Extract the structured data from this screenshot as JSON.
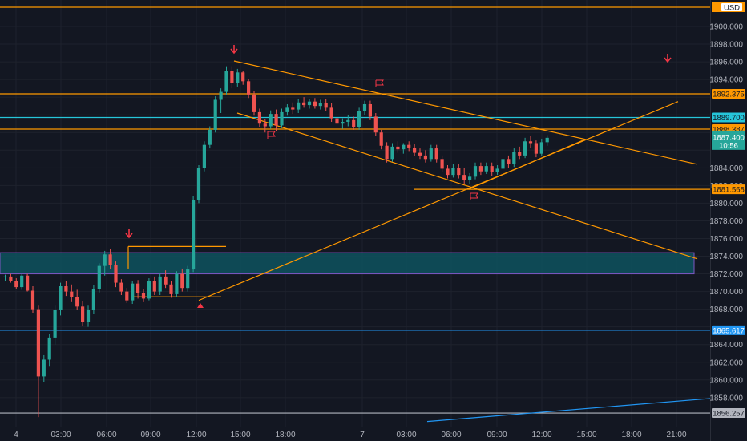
{
  "chart_data": {
    "type": "candlestick",
    "currency": "USD",
    "y_ticks": [
      "1900.000",
      "1898.000",
      "1896.000",
      "1894.000",
      "1884.000",
      "1882.000",
      "1880.000",
      "1878.000",
      "1876.000",
      "1874.000",
      "1872.000",
      "1870.000",
      "1868.000",
      "1864.000",
      "1862.000",
      "1860.000",
      "1858.000"
    ],
    "x_ticks": [
      "4",
      "03:00",
      "06:00",
      "09:00",
      "12:00",
      "15:00",
      "18:00",
      "7",
      "03:00",
      "06:00",
      "09:00",
      "12:00",
      "15:00",
      "18:00",
      "21:00"
    ],
    "horizontal_levels": [
      {
        "value": "1892.375",
        "color": "#ff9800"
      },
      {
        "value": "1889.700",
        "color": "#26c6da"
      },
      {
        "value": "1888.387",
        "color": "#ff9800"
      },
      {
        "value": "1881.568",
        "color": "#ff9800"
      },
      {
        "value": "1865.617",
        "color": "#2196f3"
      },
      {
        "value": "1856.257",
        "color": "#b2b5be"
      }
    ],
    "top_level": {
      "color": "#ff9800"
    },
    "last_price": {
      "value": "1887.400",
      "countdown": "10:56",
      "color": "#26a69a"
    },
    "zone": {
      "from": 1872.0,
      "to": 1874.4,
      "color": "#0e4f5b"
    },
    "candles": [
      [
        1871.6,
        1871.9,
        1871.2,
        1871.7
      ],
      [
        1871.7,
        1872.0,
        1871.0,
        1871.2
      ],
      [
        1871.2,
        1871.5,
        1870.3,
        1870.5
      ],
      [
        1870.5,
        1872.0,
        1870.2,
        1871.8
      ],
      [
        1871.8,
        1872.0,
        1870.0,
        1870.1
      ],
      [
        1870.1,
        1870.6,
        1867.6,
        1868.0
      ],
      [
        1868.0,
        1868.4,
        1855.8,
        1860.4
      ],
      [
        1860.4,
        1862.8,
        1859.8,
        1862.3
      ],
      [
        1862.3,
        1865.2,
        1861.5,
        1864.8
      ],
      [
        1864.8,
        1868.4,
        1864.0,
        1867.9
      ],
      [
        1867.9,
        1871.0,
        1867.3,
        1870.6
      ],
      [
        1870.6,
        1871.2,
        1869.5,
        1870.0
      ],
      [
        1870.0,
        1870.8,
        1868.8,
        1869.4
      ],
      [
        1869.4,
        1870.2,
        1867.9,
        1868.3
      ],
      [
        1868.3,
        1868.9,
        1866.1,
        1866.6
      ],
      [
        1866.6,
        1868.4,
        1866.0,
        1867.9
      ],
      [
        1867.9,
        1870.7,
        1867.5,
        1870.3
      ],
      [
        1870.3,
        1873.2,
        1869.9,
        1872.9
      ],
      [
        1872.9,
        1874.6,
        1871.8,
        1874.2
      ],
      [
        1874.2,
        1874.8,
        1872.5,
        1873.0
      ],
      [
        1873.0,
        1873.4,
        1870.5,
        1871.0
      ],
      [
        1871.0,
        1871.4,
        1869.6,
        1870.0
      ],
      [
        1870.0,
        1870.4,
        1868.7,
        1869.0
      ],
      [
        1869.0,
        1871.2,
        1868.6,
        1870.9
      ],
      [
        1870.9,
        1871.3,
        1869.2,
        1869.8
      ],
      [
        1869.8,
        1870.3,
        1868.8,
        1869.2
      ],
      [
        1869.2,
        1871.5,
        1869.0,
        1871.2
      ],
      [
        1871.2,
        1871.7,
        1869.6,
        1870.0
      ],
      [
        1870.0,
        1872.0,
        1869.6,
        1871.7
      ],
      [
        1871.7,
        1872.4,
        1870.4,
        1870.8
      ],
      [
        1870.8,
        1871.2,
        1869.3,
        1869.7
      ],
      [
        1869.7,
        1872.3,
        1869.4,
        1872.0
      ],
      [
        1872.0,
        1872.6,
        1870.0,
        1870.4
      ],
      [
        1870.4,
        1872.9,
        1870.0,
        1872.5
      ],
      [
        1872.5,
        1880.8,
        1872.2,
        1880.4
      ],
      [
        1880.4,
        1884.3,
        1880.0,
        1884.0
      ],
      [
        1884.0,
        1887.0,
        1883.6,
        1886.6
      ],
      [
        1886.6,
        1888.7,
        1886.2,
        1888.3
      ],
      [
        1888.3,
        1892.1,
        1888.0,
        1891.7
      ],
      [
        1891.7,
        1893.0,
        1890.2,
        1892.6
      ],
      [
        1892.6,
        1895.5,
        1892.3,
        1895.0
      ],
      [
        1895.0,
        1895.5,
        1893.0,
        1893.6
      ],
      [
        1893.6,
        1895.2,
        1893.2,
        1894.8
      ],
      [
        1894.8,
        1895.0,
        1893.4,
        1893.8
      ],
      [
        1893.8,
        1894.1,
        1891.9,
        1892.3
      ],
      [
        1892.3,
        1892.7,
        1889.9,
        1890.3
      ],
      [
        1890.3,
        1890.7,
        1888.6,
        1889.0
      ],
      [
        1889.0,
        1889.5,
        1888.0,
        1888.7
      ],
      [
        1888.7,
        1890.5,
        1888.4,
        1890.1
      ],
      [
        1890.1,
        1890.6,
        1888.2,
        1888.8
      ],
      [
        1888.8,
        1890.7,
        1888.5,
        1890.3
      ],
      [
        1890.3,
        1891.2,
        1889.9,
        1890.8
      ],
      [
        1890.8,
        1891.4,
        1890.1,
        1890.6
      ],
      [
        1890.6,
        1891.8,
        1890.2,
        1891.4
      ],
      [
        1891.4,
        1892.0,
        1890.8,
        1891.1
      ],
      [
        1891.1,
        1891.8,
        1890.7,
        1891.5
      ],
      [
        1891.5,
        1891.9,
        1890.7,
        1891.0
      ],
      [
        1891.0,
        1891.7,
        1890.6,
        1891.3
      ],
      [
        1891.3,
        1891.8,
        1890.4,
        1890.8
      ],
      [
        1890.8,
        1891.3,
        1889.2,
        1889.6
      ],
      [
        1889.6,
        1890.0,
        1888.6,
        1889.0
      ],
      [
        1889.0,
        1889.6,
        1888.4,
        1889.2
      ],
      [
        1889.2,
        1890.0,
        1888.7,
        1889.4
      ],
      [
        1889.4,
        1889.8,
        1888.3,
        1888.6
      ],
      [
        1888.6,
        1890.8,
        1888.3,
        1890.4
      ],
      [
        1890.4,
        1891.6,
        1890.0,
        1891.2
      ],
      [
        1891.2,
        1891.6,
        1889.4,
        1889.8
      ],
      [
        1889.8,
        1890.2,
        1887.6,
        1888.0
      ],
      [
        1888.0,
        1888.3,
        1886.1,
        1886.5
      ],
      [
        1886.5,
        1886.9,
        1884.6,
        1885.0
      ],
      [
        1885.0,
        1886.8,
        1884.7,
        1886.4
      ],
      [
        1886.4,
        1887.0,
        1885.7,
        1886.1
      ],
      [
        1886.1,
        1886.8,
        1885.6,
        1886.6
      ],
      [
        1886.6,
        1887.0,
        1885.9,
        1886.3
      ],
      [
        1886.3,
        1886.7,
        1885.3,
        1885.7
      ],
      [
        1885.7,
        1886.2,
        1885.0,
        1885.4
      ],
      [
        1885.4,
        1886.0,
        1884.6,
        1885.0
      ],
      [
        1885.0,
        1886.6,
        1884.7,
        1886.2
      ],
      [
        1886.2,
        1886.6,
        1884.6,
        1885.0
      ],
      [
        1885.0,
        1885.4,
        1883.5,
        1883.9
      ],
      [
        1883.9,
        1884.3,
        1882.8,
        1883.2
      ],
      [
        1883.2,
        1884.4,
        1882.9,
        1884.0
      ],
      [
        1884.0,
        1884.4,
        1882.8,
        1883.2
      ],
      [
        1883.2,
        1884.0,
        1882.2,
        1882.6
      ],
      [
        1882.6,
        1883.4,
        1882.2,
        1883.0
      ],
      [
        1883.0,
        1884.6,
        1882.7,
        1884.2
      ],
      [
        1884.2,
        1884.6,
        1883.2,
        1883.6
      ],
      [
        1883.6,
        1884.6,
        1883.3,
        1884.2
      ],
      [
        1884.2,
        1884.6,
        1883.1,
        1883.5
      ],
      [
        1883.5,
        1884.3,
        1883.2,
        1883.9
      ],
      [
        1883.9,
        1885.4,
        1883.6,
        1885.0
      ],
      [
        1885.0,
        1885.4,
        1884.0,
        1884.4
      ],
      [
        1884.4,
        1886.2,
        1884.1,
        1885.8
      ],
      [
        1885.8,
        1886.4,
        1885.0,
        1885.4
      ],
      [
        1885.4,
        1887.4,
        1885.1,
        1887.0
      ],
      [
        1887.0,
        1887.6,
        1886.3,
        1886.8
      ],
      [
        1886.8,
        1887.1,
        1885.2,
        1885.6
      ],
      [
        1885.6,
        1887.3,
        1885.3,
        1886.9
      ],
      [
        1886.9,
        1887.7,
        1886.5,
        1887.4
      ]
    ]
  }
}
